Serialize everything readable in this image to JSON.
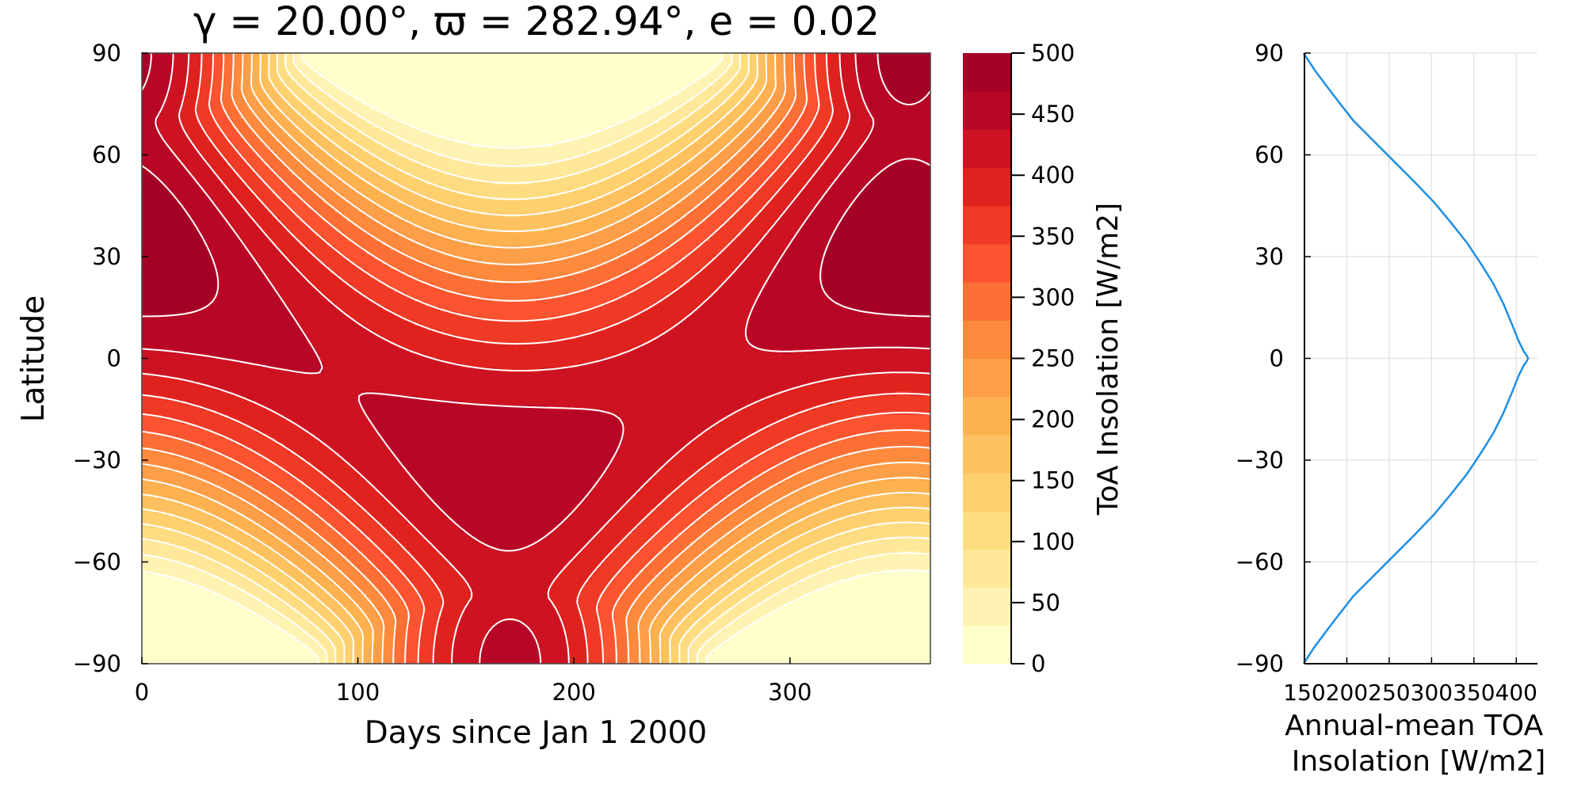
{
  "figure": {
    "title": "γ = 20.00°, ϖ = 282.94°, e = 0.02"
  },
  "chart_data": [
    {
      "type": "heatmap",
      "subtype": "filled-contour",
      "title": "γ = 20.00°, ϖ = 282.94°, e = 0.02",
      "xlabel": "Days since Jan 1 2000",
      "ylabel": "Latitude",
      "xlim": [
        0,
        365
      ],
      "ylim": [
        -90,
        90
      ],
      "xticks": [
        0,
        100,
        200,
        300
      ],
      "yticks": [
        -90,
        -60,
        -30,
        0,
        30,
        60,
        90
      ],
      "grid": false,
      "parameters": {
        "obliquity_deg": 20.0,
        "longitude_of_perihelion_deg": 282.94,
        "eccentricity": 0.02
      },
      "colorbar": {
        "label": "ToA Insolation [W/m2]",
        "range": [
          0,
          500
        ],
        "ticks": [
          0,
          50,
          100,
          150,
          200,
          250,
          300,
          350,
          400,
          450,
          500
        ],
        "level_step": 31.25,
        "colormap": "YlOrRd",
        "colors": [
          "#ffffcc",
          "#fff3b3",
          "#ffe89a",
          "#fedd82",
          "#fed06e",
          "#fec15f",
          "#feb14f",
          "#fd9e48",
          "#fd8a3d",
          "#fc6f35",
          "#fc5330",
          "#ef3a26",
          "#e0221f",
          "#cd1222",
          "#b80626",
          "#a50026"
        ],
        "contour_line_color": "#ffffff"
      }
    },
    {
      "type": "line",
      "xlabel": "Annual-mean TOA Insolation [W/m2]",
      "ylabel": "",
      "xlim": [
        150,
        425
      ],
      "ylim": [
        -90,
        90
      ],
      "xticks": [
        150,
        200,
        250,
        300,
        350,
        400
      ],
      "yticks": [
        -90,
        -60,
        -30,
        0,
        30,
        60,
        90
      ],
      "grid": true,
      "series": [
        {
          "color": "#1f8fe5",
          "x": [
            149,
            162,
            183,
            208,
            232,
            256,
            280,
            303,
            323,
            342,
            358,
            373,
            385,
            395,
            403,
            409,
            412,
            414,
            412,
            409,
            403,
            395,
            385,
            373,
            358,
            342,
            323,
            303,
            280,
            256,
            232,
            208,
            183,
            162,
            149
          ],
          "y": [
            -90,
            -85,
            -78,
            -70,
            -64,
            -58,
            -52,
            -46,
            -40,
            -34,
            -28,
            -22,
            -16,
            -10,
            -5,
            -2,
            -1,
            0,
            1,
            2,
            5,
            10,
            16,
            22,
            28,
            34,
            40,
            46,
            52,
            58,
            64,
            70,
            78,
            85,
            90
          ]
        }
      ]
    }
  ]
}
